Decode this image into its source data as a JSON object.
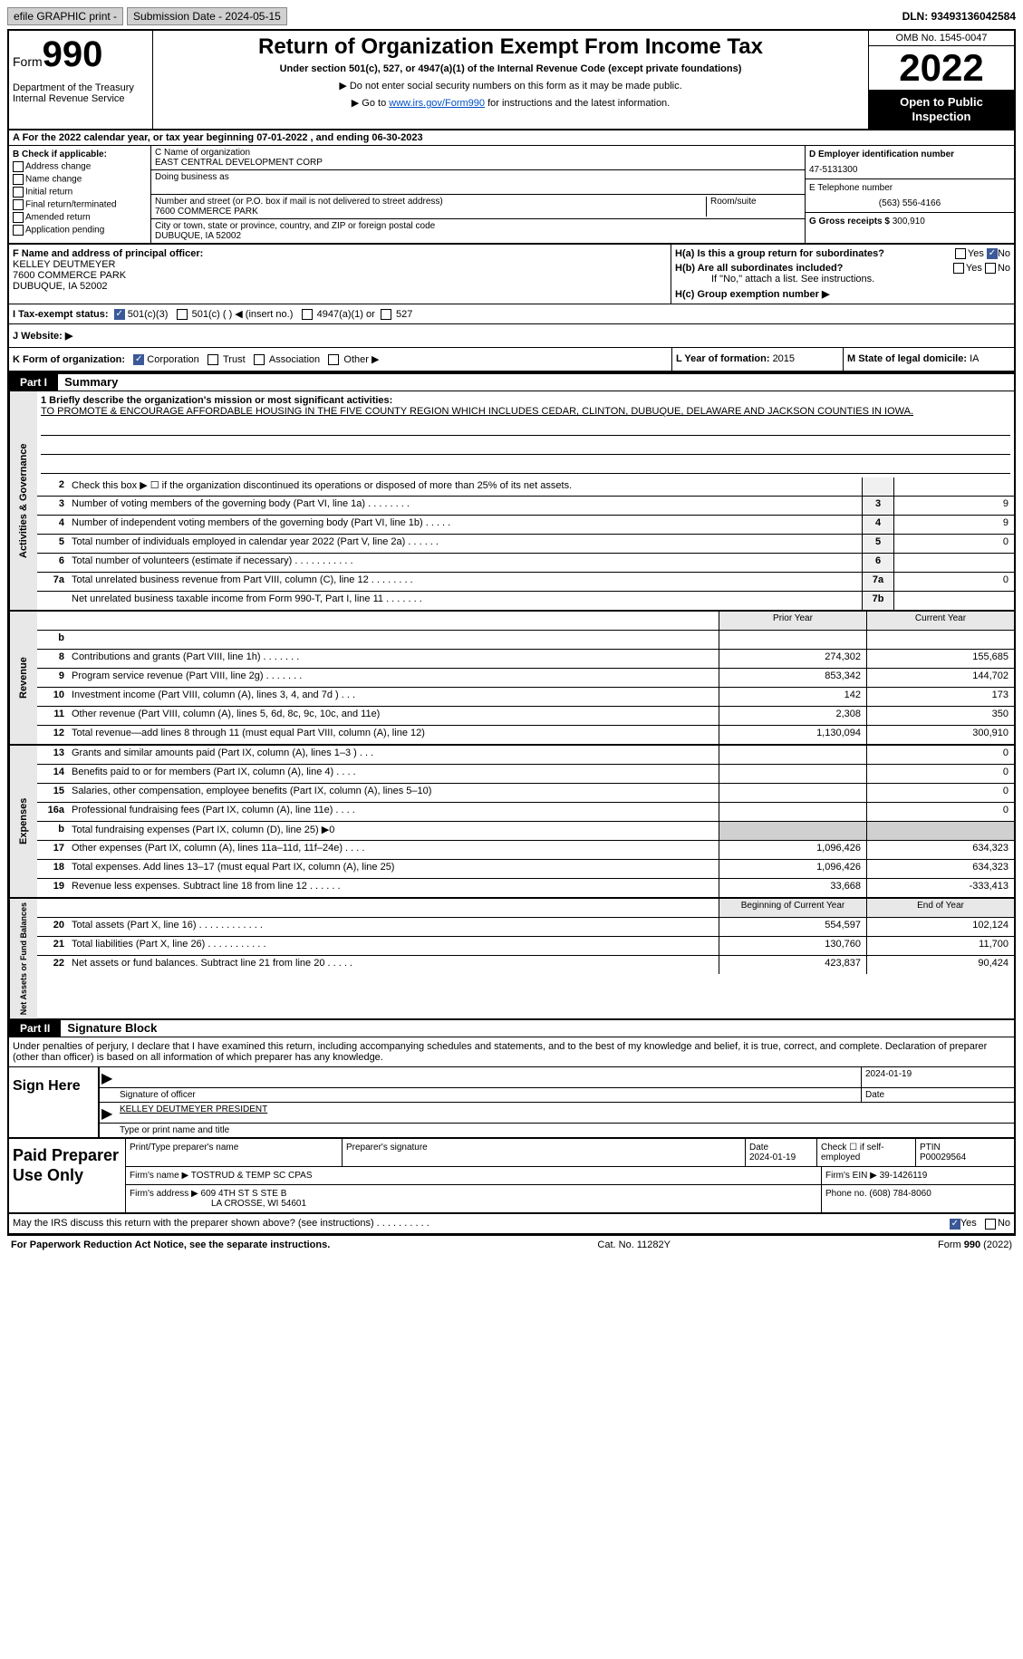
{
  "topbar": {
    "efile_label": "efile GRAPHIC print -",
    "submission_label": "Submission Date - 2024-05-15",
    "dln": "DLN: 93493136042584"
  },
  "header": {
    "form_prefix": "Form",
    "form_number": "990",
    "dept": "Department of the Treasury Internal Revenue Service",
    "title": "Return of Organization Exempt From Income Tax",
    "subtitle": "Under section 501(c), 527, or 4947(a)(1) of the Internal Revenue Code (except private foundations)",
    "note1": "▶ Do not enter social security numbers on this form as it may be made public.",
    "note2_prefix": "▶ Go to ",
    "note2_link": "www.irs.gov/Form990",
    "note2_suffix": " for instructions and the latest information.",
    "omb": "OMB No. 1545-0047",
    "year": "2022",
    "open_public": "Open to Public Inspection"
  },
  "row_a": "A For the 2022 calendar year, or tax year beginning 07-01-2022    , and ending 06-30-2023",
  "box_b": {
    "label": "B Check if applicable:",
    "opts": [
      "Address change",
      "Name change",
      "Initial return",
      "Final return/terminated",
      "Amended return",
      "Application pending"
    ]
  },
  "box_c": {
    "name_label": "C Name of organization",
    "name": "EAST CENTRAL DEVELOPMENT CORP",
    "dba_label": "Doing business as",
    "addr_label": "Number and street (or P.O. box if mail is not delivered to street address)",
    "room_label": "Room/suite",
    "addr": "7600 COMMERCE PARK",
    "city_label": "City or town, state or province, country, and ZIP or foreign postal code",
    "city": "DUBUQUE, IA  52002"
  },
  "box_d": {
    "ein_label": "D Employer identification number",
    "ein": "47-5131300",
    "tel_label": "E Telephone number",
    "tel": "(563) 556-4166",
    "gross_label": "G Gross receipts $ ",
    "gross": "300,910"
  },
  "row_f": {
    "label": "F Name and address of principal officer:",
    "name": "KELLEY DEUTMEYER",
    "addr1": "7600 COMMERCE PARK",
    "addr2": "DUBUQUE, IA  52002"
  },
  "row_h": {
    "ha": "H(a)  Is this a group return for subordinates?",
    "hb": "H(b)  Are all subordinates included?",
    "hb_note": "If \"No,\" attach a list. See instructions.",
    "hc": "H(c)  Group exemption number ▶"
  },
  "row_i": {
    "label": "I  Tax-exempt status:",
    "o1": "501(c)(3)",
    "o2": "501(c) (  ) ◀ (insert no.)",
    "o3": "4947(a)(1) or",
    "o4": "527"
  },
  "row_j": "J  Website: ▶",
  "row_k": {
    "form_label": "K Form of organization:",
    "o1": "Corporation",
    "o2": "Trust",
    "o3": "Association",
    "o4": "Other ▶",
    "year_label": "L Year of formation: ",
    "year": "2015",
    "state_label": "M State of legal domicile: ",
    "state": "IA"
  },
  "parts": {
    "p1_bar": "Part I",
    "p1_title": "Summary",
    "p2_bar": "Part II",
    "p2_title": "Signature Block"
  },
  "vtabs": {
    "gov": "Activities & Governance",
    "rev": "Revenue",
    "exp": "Expenses",
    "net": "Net Assets or Fund Balances"
  },
  "mission": {
    "label": "1   Briefly describe the organization's mission or most significant activities:",
    "text": "TO PROMOTE & ENCOURAGE AFFORDABLE HOUSING IN THE FIVE COUNTY REGION WHICH INCLUDES CEDAR, CLINTON, DUBUQUE, DELAWARE AND JACKSON COUNTIES IN IOWA."
  },
  "gov_rows": [
    {
      "n": "2",
      "d": "Check this box ▶ ☐ if the organization discontinued its operations or disposed of more than 25% of its net assets.",
      "box": "",
      "val": ""
    },
    {
      "n": "3",
      "d": "Number of voting members of the governing body (Part VI, line 1a)   .    .    .    .    .    .    .    .",
      "box": "3",
      "val": "9"
    },
    {
      "n": "4",
      "d": "Number of independent voting members of the governing body (Part VI, line 1b)   .    .    .    .    .",
      "box": "4",
      "val": "9"
    },
    {
      "n": "5",
      "d": "Total number of individuals employed in calendar year 2022 (Part V, line 2a)   .    .    .    .    .    .",
      "box": "5",
      "val": "0"
    },
    {
      "n": "6",
      "d": "Total number of volunteers (estimate if necessary)    .    .    .    .    .    .    .    .    .    .    .",
      "box": "6",
      "val": ""
    },
    {
      "n": "7a",
      "d": "Total unrelated business revenue from Part VIII, column (C), line 12   .    .    .    .    .    .    .    .",
      "box": "7a",
      "val": "0"
    },
    {
      "n": "",
      "d": "Net unrelated business taxable income from Form 990-T, Part I, line 11   .    .    .    .    .    .    .",
      "box": "7b",
      "val": ""
    }
  ],
  "pycy_header": {
    "prior": "Prior Year",
    "curr": "Current Year"
  },
  "rev_rows": [
    {
      "n": "b",
      "d": "",
      "p": "",
      "c": ""
    },
    {
      "n": "8",
      "d": "Contributions and grants (Part VIII, line 1h)    .    .    .    .    .    .    .",
      "p": "274,302",
      "c": "155,685"
    },
    {
      "n": "9",
      "d": "Program service revenue (Part VIII, line 2g)    .    .    .    .    .    .    .",
      "p": "853,342",
      "c": "144,702"
    },
    {
      "n": "10",
      "d": "Investment income (Part VIII, column (A), lines 3, 4, and 7d )    .    .    .",
      "p": "142",
      "c": "173"
    },
    {
      "n": "11",
      "d": "Other revenue (Part VIII, column (A), lines 5, 6d, 8c, 9c, 10c, and 11e)",
      "p": "2,308",
      "c": "350"
    },
    {
      "n": "12",
      "d": "Total revenue—add lines 8 through 11 (must equal Part VIII, column (A), line 12)",
      "p": "1,130,094",
      "c": "300,910"
    }
  ],
  "exp_rows": [
    {
      "n": "13",
      "d": "Grants and similar amounts paid (Part IX, column (A), lines 1–3 )   .    .    .",
      "p": "",
      "c": "0"
    },
    {
      "n": "14",
      "d": "Benefits paid to or for members (Part IX, column (A), line 4)   .    .    .    .",
      "p": "",
      "c": "0"
    },
    {
      "n": "15",
      "d": "Salaries, other compensation, employee benefits (Part IX, column (A), lines 5–10)",
      "p": "",
      "c": "0"
    },
    {
      "n": "16a",
      "d": "Professional fundraising fees (Part IX, column (A), line 11e)   .    .    .    .",
      "p": "",
      "c": "0"
    },
    {
      "n": "b",
      "d": "Total fundraising expenses (Part IX, column (D), line 25) ▶0",
      "p": "GRAY",
      "c": "GRAY"
    },
    {
      "n": "17",
      "d": "Other expenses (Part IX, column (A), lines 11a–11d, 11f–24e)   .    .    .    .",
      "p": "1,096,426",
      "c": "634,323"
    },
    {
      "n": "18",
      "d": "Total expenses. Add lines 13–17 (must equal Part IX, column (A), line 25)",
      "p": "1,096,426",
      "c": "634,323"
    },
    {
      "n": "19",
      "d": "Revenue less expenses. Subtract line 18 from line 12   .    .    .    .    .    .",
      "p": "33,668",
      "c": "-333,413"
    }
  ],
  "net_header": {
    "prior": "Beginning of Current Year",
    "curr": "End of Year"
  },
  "net_rows": [
    {
      "n": "20",
      "d": "Total assets (Part X, line 16)   .    .    .    .    .    .    .    .    .    .    .    .",
      "p": "554,597",
      "c": "102,124"
    },
    {
      "n": "21",
      "d": "Total liabilities (Part X, line 26)   .    .    .    .    .    .    .    .    .    .    .",
      "p": "130,760",
      "c": "11,700"
    },
    {
      "n": "22",
      "d": "Net assets or fund balances. Subtract line 21 from line 20   .    .    .    .    .",
      "p": "423,837",
      "c": "90,424"
    }
  ],
  "sig_intro": "Under penalties of perjury, I declare that I have examined this return, including accompanying schedules and statements, and to the best of my knowledge and belief, it is true, correct, and complete. Declaration of preparer (other than officer) is based on all information of which preparer has any knowledge.",
  "sign": {
    "left": "Sign Here",
    "sig_label": "Signature of officer",
    "date": "2024-01-19",
    "date_label": "Date",
    "name": "KELLEY DEUTMEYER  PRESIDENT",
    "name_label": "Type or print name and title"
  },
  "prep": {
    "left": "Paid Preparer Use Only",
    "h_print": "Print/Type preparer's name",
    "h_sig": "Preparer's signature",
    "h_date": "Date",
    "date": "2024-01-19",
    "h_check": "Check ☐ if self-employed",
    "h_ptin": "PTIN",
    "ptin": "P00029564",
    "firm_label": "Firm's name      ▶ ",
    "firm": "TOSTRUD & TEMP SC CPAS",
    "ein_label": "Firm's EIN ▶ ",
    "ein": "39-1426119",
    "addr_label": "Firm's address ▶ ",
    "addr1": "609 4TH ST S STE B",
    "addr2": "LA CROSSE, WI  54601",
    "phone_label": "Phone no. ",
    "phone": "(608) 784-8060"
  },
  "footer": {
    "discuss": "May the IRS discuss this return with the preparer shown above? (see instructions)   .    .    .    .    .    .    .    .    .    .",
    "yes": "Yes",
    "no": "No",
    "pra": "For Paperwork Reduction Act Notice, see the separate instructions.",
    "cat": "Cat. No. 11282Y",
    "form": "Form 990 (2022)"
  }
}
